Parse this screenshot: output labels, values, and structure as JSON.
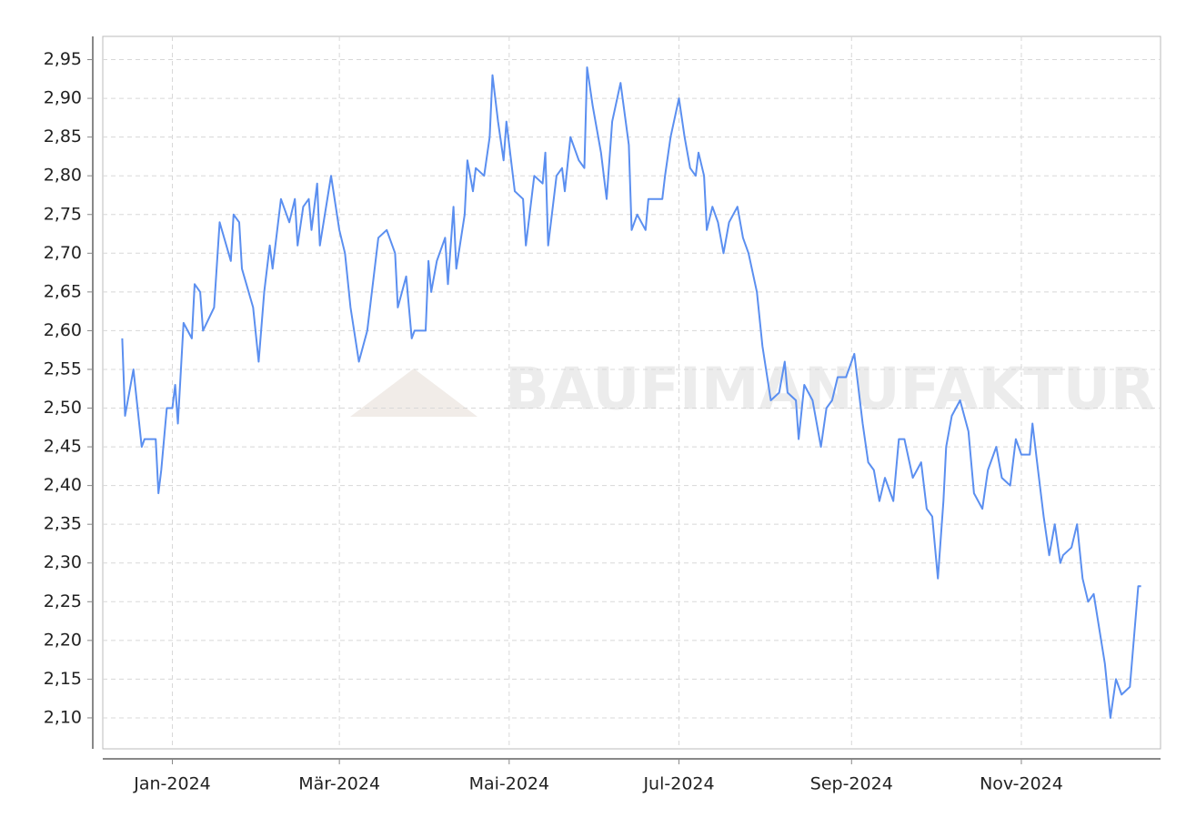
{
  "chart_data": {
    "type": "line",
    "watermark": "BAUFIMANUFAKTUR",
    "x": [
      -18,
      -17,
      -14,
      -11,
      -10,
      -6,
      -5,
      -4,
      -2,
      0,
      1,
      2,
      4,
      7,
      8,
      10,
      11,
      15,
      17,
      21,
      22,
      24,
      25,
      29,
      31,
      33,
      35,
      36,
      39,
      42,
      44,
      45,
      47,
      49,
      50,
      52,
      53,
      57,
      60,
      62,
      64,
      67,
      70,
      74,
      77,
      80,
      81,
      84,
      86,
      87,
      91,
      92,
      93,
      95,
      98,
      99,
      101,
      102,
      105,
      106,
      108,
      109,
      112,
      114,
      115,
      117,
      119,
      120,
      123,
      126,
      127,
      130,
      133,
      134,
      135,
      138,
      140,
      141,
      143,
      146,
      148,
      149,
      151,
      154,
      156,
      158,
      161,
      164,
      165,
      167,
      170,
      171,
      176,
      177,
      179,
      182,
      184,
      186,
      188,
      189,
      191,
      192,
      194,
      196,
      198,
      200,
      203,
      205,
      207,
      210,
      212,
      215,
      218,
      220,
      221,
      224,
      225,
      227,
      230,
      233,
      235,
      237,
      239,
      242,
      245,
      248,
      250,
      252,
      254,
      256,
      259,
      261,
      263,
      266,
      269,
      271,
      273,
      275,
      277,
      278,
      280,
      283,
      286,
      288,
      291,
      293,
      296,
      298,
      301,
      303,
      305,
      308,
      309,
      311,
      313,
      315,
      317,
      319,
      320,
      323,
      325,
      327,
      329,
      331,
      335,
      337,
      339,
      341,
      344,
      347,
      348
    ],
    "values": [
      2.59,
      2.49,
      2.55,
      2.45,
      2.46,
      2.46,
      2.39,
      2.42,
      2.5,
      2.5,
      2.53,
      2.48,
      2.61,
      2.59,
      2.66,
      2.65,
      2.6,
      2.63,
      2.74,
      2.69,
      2.75,
      2.74,
      2.68,
      2.63,
      2.56,
      2.65,
      2.71,
      2.68,
      2.77,
      2.74,
      2.77,
      2.71,
      2.76,
      2.77,
      2.73,
      2.79,
      2.71,
      2.8,
      2.73,
      2.7,
      2.63,
      2.56,
      2.6,
      2.72,
      2.73,
      2.7,
      2.63,
      2.67,
      2.59,
      2.6,
      2.6,
      2.69,
      2.65,
      2.69,
      2.72,
      2.66,
      2.76,
      2.68,
      2.75,
      2.82,
      2.78,
      2.81,
      2.8,
      2.85,
      2.93,
      2.87,
      2.82,
      2.87,
      2.78,
      2.77,
      2.71,
      2.8,
      2.79,
      2.83,
      2.71,
      2.8,
      2.81,
      2.78,
      2.85,
      2.82,
      2.81,
      2.94,
      2.89,
      2.83,
      2.77,
      2.87,
      2.92,
      2.84,
      2.73,
      2.75,
      2.73,
      2.77,
      2.77,
      2.8,
      2.85,
      2.9,
      2.85,
      2.81,
      2.8,
      2.83,
      2.8,
      2.73,
      2.76,
      2.74,
      2.7,
      2.74,
      2.76,
      2.72,
      2.7,
      2.65,
      2.58,
      2.51,
      2.52,
      2.56,
      2.52,
      2.51,
      2.46,
      2.53,
      2.51,
      2.45,
      2.5,
      2.51,
      2.54,
      2.54,
      2.57,
      2.48,
      2.43,
      2.42,
      2.38,
      2.41,
      2.38,
      2.46,
      2.46,
      2.41,
      2.43,
      2.37,
      2.36,
      2.28,
      2.38,
      2.45,
      2.49,
      2.51,
      2.47,
      2.39,
      2.37,
      2.42,
      2.45,
      2.41,
      2.4,
      2.46,
      2.44,
      2.44,
      2.48,
      2.42,
      2.36,
      2.31,
      2.35,
      2.3,
      2.31,
      2.32,
      2.35,
      2.28,
      2.25,
      2.26,
      2.17,
      2.1,
      2.15,
      2.13,
      2.14,
      2.27,
      2.27
    ],
    "color": "#5b8ff0",
    "xlim": [
      -25,
      355
    ],
    "xticks": [
      {
        "value": 0,
        "label": "Jan-2024"
      },
      {
        "value": 60,
        "label": "Mär-2024"
      },
      {
        "value": 121,
        "label": "Mai-2024"
      },
      {
        "value": 182,
        "label": "Jul-2024"
      },
      {
        "value": 244,
        "label": "Sep-2024"
      },
      {
        "value": 305,
        "label": "Nov-2024"
      }
    ],
    "ylim": [
      2.06,
      2.98
    ],
    "yticks": [
      {
        "value": 2.1,
        "label": "2,10"
      },
      {
        "value": 2.15,
        "label": "2,15"
      },
      {
        "value": 2.2,
        "label": "2,20"
      },
      {
        "value": 2.25,
        "label": "2,25"
      },
      {
        "value": 2.3,
        "label": "2,30"
      },
      {
        "value": 2.35,
        "label": "2,35"
      },
      {
        "value": 2.4,
        "label": "2,40"
      },
      {
        "value": 2.45,
        "label": "2,45"
      },
      {
        "value": 2.5,
        "label": "2,50"
      },
      {
        "value": 2.55,
        "label": "2,55"
      },
      {
        "value": 2.6,
        "label": "2,60"
      },
      {
        "value": 2.65,
        "label": "2,65"
      },
      {
        "value": 2.7,
        "label": "2,70"
      },
      {
        "value": 2.75,
        "label": "2,75"
      },
      {
        "value": 2.8,
        "label": "2,80"
      },
      {
        "value": 2.85,
        "label": "2,85"
      },
      {
        "value": 2.9,
        "label": "2,90"
      },
      {
        "value": 2.95,
        "label": "2,95"
      }
    ],
    "grid": true
  }
}
